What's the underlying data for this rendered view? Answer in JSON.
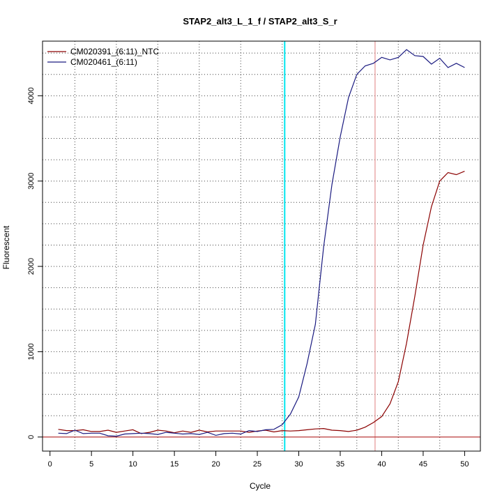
{
  "chart_data": {
    "type": "line",
    "title": "STAP2_alt3_L_1_f / STAP2_alt3_S_r",
    "xlabel": "Cycle",
    "ylabel": "Fluorescent",
    "xlim": [
      -0.9,
      51.9
    ],
    "ylim": [
      -165,
      4640
    ],
    "x_ticks": [
      "0",
      "5",
      "10",
      "15",
      "20",
      "25",
      "30",
      "35",
      "40",
      "45",
      "50"
    ],
    "y_ticks": [
      "0",
      "1000",
      "2000",
      "3000",
      "4000"
    ],
    "grid": true,
    "grid_x": [
      3,
      8,
      13,
      18,
      23,
      28,
      32.5,
      37,
      42,
      47,
      52
    ],
    "grid_y": [
      0,
      250,
      500,
      750,
      1000,
      1250,
      1500,
      1750,
      2000,
      2250,
      2500,
      2750,
      3000,
      3250,
      3500,
      3750,
      4000,
      4250,
      4500
    ],
    "legend_position": "top-left",
    "threshold_y": 0,
    "vlines": [
      {
        "x": 28.3,
        "color": "#00e5ee"
      },
      {
        "x": 39.2,
        "color": "#e08080"
      }
    ],
    "colors": {
      "baseline": "#b22222",
      "frame": "#000000"
    },
    "x": [
      1,
      2,
      3,
      4,
      5,
      6,
      7,
      8,
      9,
      10,
      11,
      12,
      13,
      14,
      15,
      16,
      17,
      18,
      19,
      20,
      21,
      22,
      23,
      24,
      25,
      26,
      27,
      28,
      29,
      30,
      31,
      32,
      33,
      34,
      35,
      36,
      37,
      38,
      39,
      40,
      41,
      42,
      43,
      44,
      45,
      46,
      47,
      48,
      49,
      50
    ],
    "series": [
      {
        "name": "CM020391_(6:11)_NTC",
        "color": "#8b0000",
        "values": [
          90,
          75,
          75,
          85,
          65,
          65,
          80,
          55,
          70,
          85,
          40,
          55,
          80,
          70,
          50,
          70,
          55,
          80,
          60,
          70,
          70,
          70,
          70,
          55,
          70,
          80,
          60,
          75,
          70,
          75,
          85,
          95,
          100,
          80,
          75,
          65,
          80,
          115,
          170,
          240,
          390,
          650,
          1100,
          1650,
          2250,
          2700,
          3000,
          3100,
          3075,
          3115
        ]
      },
      {
        "name": "CM020461_(6:11)",
        "color": "#1a1a80",
        "values": [
          45,
          40,
          80,
          40,
          45,
          45,
          15,
          10,
          35,
          40,
          45,
          40,
          30,
          55,
          45,
          35,
          40,
          30,
          55,
          20,
          40,
          45,
          35,
          75,
          65,
          85,
          90,
          145,
          270,
          470,
          860,
          1320,
          2230,
          2960,
          3520,
          3980,
          4250,
          4350,
          4380,
          4450,
          4420,
          4450,
          4540,
          4470,
          4460,
          4370,
          4440,
          4330,
          4380,
          4330
        ]
      }
    ]
  }
}
